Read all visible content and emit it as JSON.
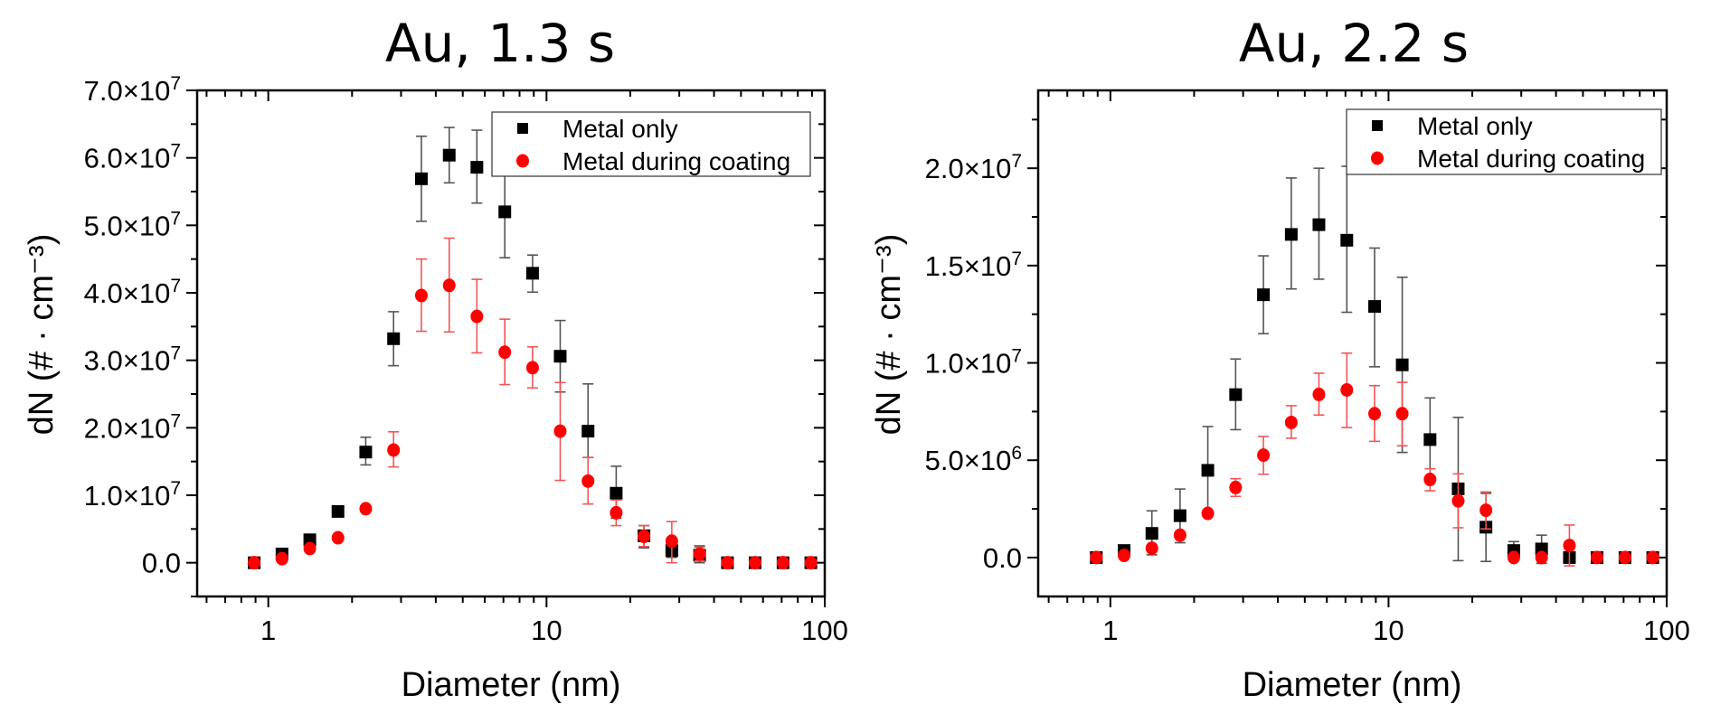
{
  "chart_data": [
    {
      "type": "scatter",
      "title": "Au, 1.3 s",
      "xlabel": "Diameter (nm)",
      "ylabel": "dN (# · cm⁻³)",
      "xscale": "log",
      "xlim": [
        0.555,
        100
      ],
      "ylim": [
        -5000000,
        70000000
      ],
      "x_tick_values": [
        1,
        10,
        100
      ],
      "x_tick_labels": [
        "1",
        "10",
        "100"
      ],
      "y_tick_values": [
        0,
        10000000,
        20000000,
        30000000,
        40000000,
        50000000,
        60000000,
        70000000
      ],
      "y_tick_labels": [
        "0.0",
        "1.0×10^7",
        "2.0×10^7",
        "3.0×10^7",
        "4.0×10^7",
        "5.0×10^7",
        "6.0×10^7",
        "7.0×10^7"
      ],
      "grid": false,
      "legend_position": "top-right",
      "x": [
        0.89,
        1.12,
        1.41,
        1.78,
        2.24,
        2.82,
        3.55,
        4.47,
        5.62,
        7.08,
        8.91,
        11.2,
        14.1,
        17.8,
        22.4,
        28.2,
        35.5,
        44.7,
        56.2,
        70.8,
        89.1
      ],
      "series": [
        {
          "name": "Metal only",
          "marker": "square",
          "color": "#000000",
          "error_color": "#555555",
          "values": [
            0,
            1300000,
            3400000,
            7600000,
            16400000,
            33200000,
            56900000,
            60400000,
            58600000,
            52000000,
            42900000,
            30600000,
            19500000,
            10300000,
            4000000,
            1800000,
            1100000,
            0,
            0,
            0,
            0
          ],
          "err_high": [
            null,
            null,
            null,
            null,
            18600000,
            37200000,
            63200000,
            64500000,
            64100000,
            58800000,
            45600000,
            35900000,
            26500000,
            14300000,
            5500000,
            2900000,
            2500000,
            null,
            null,
            null,
            null
          ],
          "err_low": [
            null,
            null,
            null,
            null,
            14500000,
            29200000,
            50600000,
            56300000,
            53300000,
            45200000,
            40100000,
            25300000,
            15600000,
            6600000,
            2200000,
            800000,
            0,
            null,
            null,
            null,
            null
          ]
        },
        {
          "name": "Metal during coating",
          "marker": "circle",
          "color": "#ff0000",
          "error_color": "#f25555",
          "values": [
            0,
            600000,
            2100000,
            3700000,
            8000000,
            16700000,
            39600000,
            41100000,
            36500000,
            31200000,
            28900000,
            19500000,
            12100000,
            7400000,
            3900000,
            3200000,
            1300000,
            0,
            0,
            0,
            0
          ],
          "err_high": [
            null,
            null,
            null,
            null,
            null,
            19400000,
            45000000,
            48100000,
            42000000,
            36100000,
            32000000,
            26700000,
            15600000,
            9300000,
            5500000,
            6100000,
            2300000,
            null,
            null,
            null,
            null
          ],
          "err_low": [
            null,
            null,
            null,
            null,
            null,
            14200000,
            34300000,
            34200000,
            31100000,
            26400000,
            25900000,
            12200000,
            8700000,
            5500000,
            2400000,
            0,
            300000,
            null,
            null,
            null,
            null
          ]
        }
      ]
    },
    {
      "type": "scatter",
      "title": "Au, 2.2 s",
      "xlabel": "Diameter (nm)",
      "ylabel": "dN (# · cm⁻³)",
      "xscale": "log",
      "xlim": [
        0.55,
        100
      ],
      "ylim": [
        -2000000,
        24000000
      ],
      "x_tick_values": [
        1,
        10,
        100
      ],
      "x_tick_labels": [
        "1",
        "10",
        "100"
      ],
      "y_tick_values": [
        0,
        5000000,
        10000000,
        15000000,
        20000000
      ],
      "y_tick_labels": [
        "0.0",
        "5.0×10^6",
        "1.0×10^7",
        "1.5×10^7",
        "2.0×10^7"
      ],
      "grid": false,
      "legend_position": "top-right",
      "x": [
        0.89,
        1.12,
        1.41,
        1.78,
        2.24,
        2.82,
        3.55,
        4.47,
        5.62,
        7.08,
        8.91,
        11.2,
        14.1,
        17.8,
        22.4,
        28.2,
        35.5,
        44.7,
        56.2,
        70.8,
        89.1
      ],
      "series": [
        {
          "name": "Metal only",
          "marker": "square",
          "color": "#000000",
          "error_color": "#555555",
          "values": [
            0,
            360000,
            1240000,
            2150000,
            4480000,
            8370000,
            13500000,
            16600000,
            17100000,
            16300000,
            12900000,
            9900000,
            6060000,
            3530000,
            1560000,
            360000,
            440000,
            0,
            0,
            0,
            0
          ],
          "err_high": [
            null,
            440000,
            2400000,
            3520000,
            6730000,
            10200000,
            15500000,
            19500000,
            20000000,
            20100000,
            15900000,
            14400000,
            8200000,
            7200000,
            3300000,
            820000,
            1150000,
            null,
            null,
            null,
            null
          ],
          "err_low": [
            null,
            230000,
            140000,
            760000,
            2270000,
            6570000,
            11500000,
            13800000,
            14300000,
            12600000,
            9800000,
            5400000,
            4000000,
            -160000,
            -200000,
            -120000,
            -300000,
            null,
            null,
            null,
            null
          ]
        },
        {
          "name": "Metal during coating",
          "marker": "circle",
          "color": "#ff0000",
          "error_color": "#f25555",
          "values": [
            0,
            110000,
            480000,
            1150000,
            2270000,
            3600000,
            5260000,
            6940000,
            8380000,
            8610000,
            7390000,
            7390000,
            4010000,
            2910000,
            2430000,
            0,
            0,
            620000,
            0,
            0,
            0
          ],
          "err_high": [
            null,
            null,
            null,
            null,
            null,
            4050000,
            6220000,
            7800000,
            9470000,
            10500000,
            8830000,
            9000000,
            4560000,
            4300000,
            3370000,
            null,
            null,
            1670000,
            null,
            null,
            null
          ],
          "err_low": [
            null,
            null,
            null,
            null,
            null,
            3140000,
            4280000,
            6130000,
            7320000,
            6680000,
            5970000,
            5740000,
            3430000,
            1530000,
            1470000,
            null,
            null,
            -430000,
            null,
            null,
            null
          ]
        }
      ]
    }
  ]
}
